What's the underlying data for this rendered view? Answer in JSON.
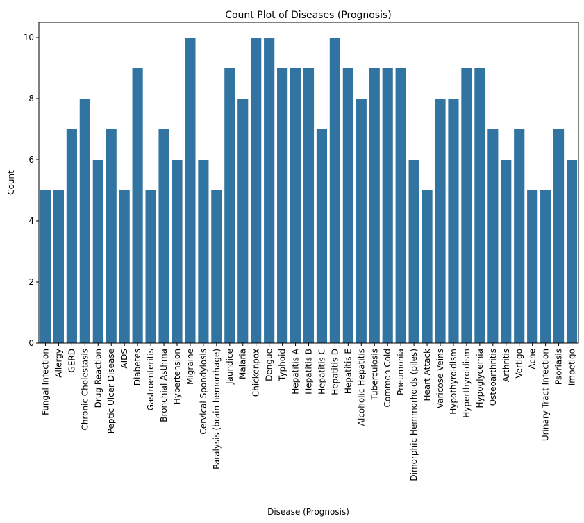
{
  "chart_data": {
    "type": "bar",
    "title": "Count Plot of Diseases (Prognosis)",
    "xlabel": "Disease (Prognosis)",
    "ylabel": "Count",
    "ylim": [
      0,
      10.5
    ],
    "yticks": [
      0,
      2,
      4,
      6,
      8,
      10
    ],
    "grid": false,
    "bar_color": "#3274a1",
    "categories": [
      "Fungal Infection",
      "Allergy",
      "GERD",
      "Chronic Cholestasis",
      "Drug Reaction",
      "Peptic Ulcer Disease",
      "AIDS",
      "Diabetes",
      "Gastroenteritis",
      "Bronchial Asthma",
      "Hypertension",
      "Migraine",
      "Cervical Spondylosis",
      "Paralysis (brain hemorrhage)",
      "Jaundice",
      "Malaria",
      "Chickenpox",
      "Dengue",
      "Typhoid",
      "Hepatitis A",
      "Hepatitis B",
      "Hepatitis C",
      "Hepatitis D",
      "Hepatitis E",
      "Alcoholic Hepatitis",
      "Tuberculosis",
      "Common Cold",
      "Pneumonia",
      "Dimorphic Hemmorhoids (piles)",
      "Heart Attack",
      "Varicose Veins",
      "Hypothyroidism",
      "Hyperthyroidism",
      "Hypoglycemia",
      "Osteoarthritis",
      "Arthritis",
      "Vertigo",
      "Acne",
      "Urinary Tract Infection",
      "Psoriasis",
      "Impetigo"
    ],
    "values": [
      5,
      5,
      7,
      8,
      6,
      7,
      5,
      9,
      5,
      7,
      6,
      10,
      6,
      5,
      9,
      8,
      10,
      10,
      9,
      9,
      9,
      7,
      10,
      9,
      8,
      9,
      9,
      9,
      6,
      5,
      8,
      8,
      9,
      9,
      7,
      6,
      7,
      5,
      5,
      7,
      6
    ]
  }
}
